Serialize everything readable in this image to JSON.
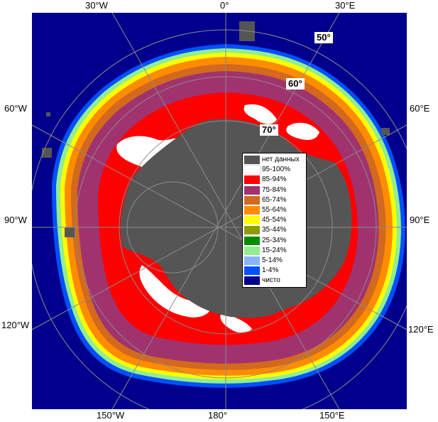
{
  "colors": {
    "ocean": "#00008c",
    "no_data": "#555555",
    "ice_95_100": "#ffffff",
    "ice_85_94": "#ff0000",
    "ice_75_84": "#a0336e",
    "ice_65_74": "#d2691e",
    "ice_55_64": "#ff8c00",
    "ice_45_54": "#ffff00",
    "ice_35_44": "#8c9b00",
    "ice_25_34": "#008c00",
    "ice_15_24": "#90ee90",
    "ice_5_14": "#87b4ff",
    "ice_1_4": "#0050ff",
    "grid": "#8a8a8a"
  },
  "longitude_labels": {
    "top_30w": "30°W",
    "top_0": "0°",
    "top_30e": "30°E",
    "left_60w": "60°W",
    "left_90w": "90°W",
    "left_120w": "120°W",
    "right_60e": "60°E",
    "right_90e": "90°E",
    "right_120e": "120°E",
    "bottom_150w": "150°W",
    "bottom_180": "180°",
    "bottom_150e": "150°E"
  },
  "latitude_labels": {
    "lat50": "50°",
    "lat60": "60°",
    "lat70": "70°"
  },
  "legend": [
    {
      "label": "нет данных",
      "color": "#555555"
    },
    {
      "label": "95-100%",
      "color": "#ffffff"
    },
    {
      "label": "85-94%",
      "color": "#ff0000"
    },
    {
      "label": "75-84%",
      "color": "#a0336e"
    },
    {
      "label": "65-74%",
      "color": "#d2691e"
    },
    {
      "label": "55-64%",
      "color": "#ff8c00"
    },
    {
      "label": "45-54%",
      "color": "#ffff00"
    },
    {
      "label": "35-44%",
      "color": "#8c9b00"
    },
    {
      "label": "25-34%",
      "color": "#008c00"
    },
    {
      "label": "15-24%",
      "color": "#90ee90"
    },
    {
      "label": "5-14%",
      "color": "#87b4ff"
    },
    {
      "label": "1-4%",
      "color": "#0050ff"
    },
    {
      "label": "чисто",
      "color": "#00008c"
    }
  ]
}
